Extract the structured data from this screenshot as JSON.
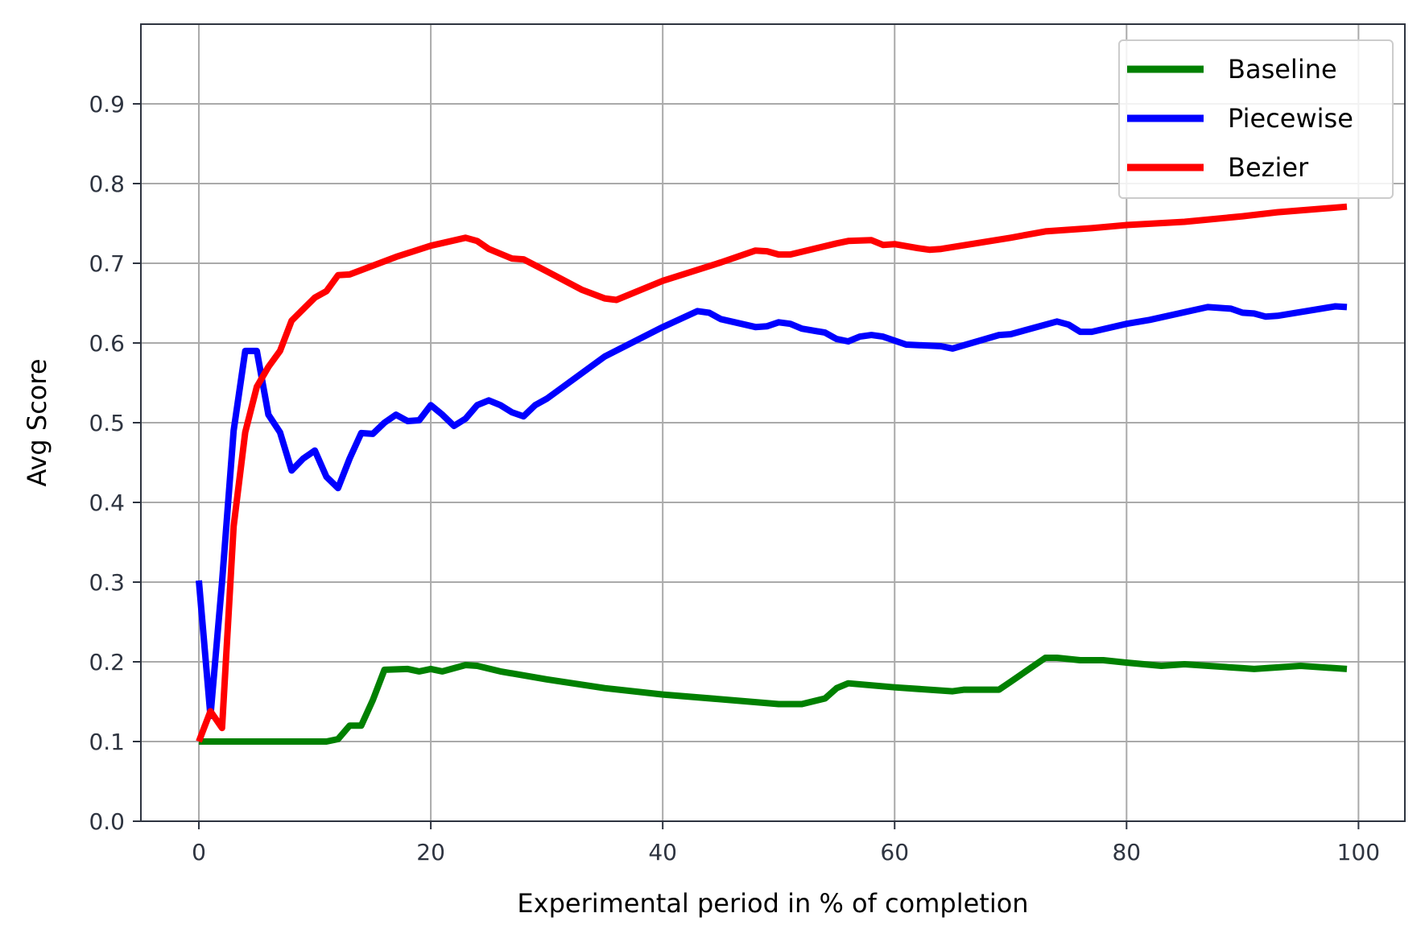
{
  "chart_data": {
    "type": "line",
    "xlabel": "Experimental period in % of completion",
    "ylabel": "Avg Score",
    "xlim": [
      -5,
      104
    ],
    "ylim": [
      0.0,
      1.0
    ],
    "xticks": [
      0,
      20,
      40,
      60,
      80,
      100
    ],
    "xtick_labels": [
      "0",
      "20",
      "40",
      "60",
      "80",
      "100"
    ],
    "yticks": [
      0.0,
      0.1,
      0.2,
      0.3,
      0.4,
      0.5,
      0.6,
      0.7,
      0.8,
      0.9
    ],
    "ytick_labels": [
      "0.0",
      "0.1",
      "0.2",
      "0.3",
      "0.4",
      "0.5",
      "0.6",
      "0.7",
      "0.8",
      "0.9"
    ],
    "grid": true,
    "legend_position": "top-right",
    "series": [
      {
        "name": "Baseline",
        "color": "#008000",
        "points": [
          [
            0,
            0.1
          ],
          [
            5,
            0.1
          ],
          [
            11,
            0.1
          ],
          [
            12,
            0.103
          ],
          [
            13,
            0.12
          ],
          [
            14,
            0.12
          ],
          [
            15,
            0.152
          ],
          [
            16,
            0.19
          ],
          [
            18,
            0.191
          ],
          [
            19,
            0.188
          ],
          [
            20,
            0.191
          ],
          [
            21,
            0.188
          ],
          [
            23,
            0.196
          ],
          [
            24,
            0.195
          ],
          [
            26,
            0.188
          ],
          [
            30,
            0.178
          ],
          [
            35,
            0.167
          ],
          [
            40,
            0.159
          ],
          [
            45,
            0.153
          ],
          [
            50,
            0.147
          ],
          [
            52,
            0.147
          ],
          [
            54,
            0.154
          ],
          [
            55,
            0.167
          ],
          [
            56,
            0.173
          ],
          [
            60,
            0.168
          ],
          [
            65,
            0.163
          ],
          [
            66,
            0.165
          ],
          [
            69,
            0.165
          ],
          [
            70,
            0.175
          ],
          [
            73,
            0.205
          ],
          [
            74,
            0.205
          ],
          [
            76,
            0.202
          ],
          [
            78,
            0.202
          ],
          [
            80,
            0.199
          ],
          [
            83,
            0.195
          ],
          [
            85,
            0.197
          ],
          [
            90,
            0.192
          ],
          [
            91,
            0.191
          ],
          [
            95,
            0.195
          ],
          [
            99,
            0.191
          ]
        ]
      },
      {
        "name": "Piecewise",
        "color": "#0000ff",
        "points": [
          [
            0,
            0.302
          ],
          [
            1,
            0.132
          ],
          [
            2,
            0.3
          ],
          [
            3,
            0.49
          ],
          [
            4,
            0.59
          ],
          [
            5,
            0.59
          ],
          [
            6,
            0.51
          ],
          [
            7,
            0.488
          ],
          [
            8,
            0.44
          ],
          [
            9,
            0.455
          ],
          [
            10,
            0.465
          ],
          [
            11,
            0.432
          ],
          [
            12,
            0.418
          ],
          [
            13,
            0.455
          ],
          [
            14,
            0.487
          ],
          [
            15,
            0.486
          ],
          [
            16,
            0.5
          ],
          [
            17,
            0.51
          ],
          [
            18,
            0.502
          ],
          [
            19,
            0.503
          ],
          [
            20,
            0.522
          ],
          [
            21,
            0.51
          ],
          [
            22,
            0.496
          ],
          [
            23,
            0.505
          ],
          [
            24,
            0.522
          ],
          [
            25,
            0.528
          ],
          [
            26,
            0.522
          ],
          [
            27,
            0.513
          ],
          [
            28,
            0.508
          ],
          [
            29,
            0.522
          ],
          [
            30,
            0.53
          ],
          [
            35,
            0.583
          ],
          [
            40,
            0.62
          ],
          [
            43,
            0.64
          ],
          [
            44,
            0.638
          ],
          [
            45,
            0.63
          ],
          [
            48,
            0.62
          ],
          [
            49,
            0.621
          ],
          [
            50,
            0.626
          ],
          [
            51,
            0.624
          ],
          [
            52,
            0.618
          ],
          [
            54,
            0.613
          ],
          [
            55,
            0.605
          ],
          [
            56,
            0.602
          ],
          [
            57,
            0.608
          ],
          [
            58,
            0.61
          ],
          [
            59,
            0.608
          ],
          [
            61,
            0.598
          ],
          [
            64,
            0.596
          ],
          [
            65,
            0.593
          ],
          [
            69,
            0.61
          ],
          [
            70,
            0.611
          ],
          [
            74,
            0.627
          ],
          [
            75,
            0.623
          ],
          [
            76,
            0.614
          ],
          [
            77,
            0.614
          ],
          [
            80,
            0.624
          ],
          [
            82,
            0.629
          ],
          [
            87,
            0.645
          ],
          [
            89,
            0.643
          ],
          [
            90,
            0.638
          ],
          [
            91,
            0.637
          ],
          [
            92,
            0.633
          ],
          [
            93,
            0.634
          ],
          [
            98,
            0.646
          ],
          [
            99,
            0.645
          ]
        ]
      },
      {
        "name": "Bezier",
        "color": "#ff0000",
        "points": [
          [
            0,
            0.1
          ],
          [
            1,
            0.138
          ],
          [
            2,
            0.117
          ],
          [
            3,
            0.37
          ],
          [
            4,
            0.488
          ],
          [
            5,
            0.545
          ],
          [
            6,
            0.57
          ],
          [
            7,
            0.59
          ],
          [
            8,
            0.628
          ],
          [
            10,
            0.657
          ],
          [
            11,
            0.665
          ],
          [
            12,
            0.685
          ],
          [
            13,
            0.686
          ],
          [
            15,
            0.697
          ],
          [
            17,
            0.708
          ],
          [
            20,
            0.722
          ],
          [
            23,
            0.732
          ],
          [
            24,
            0.728
          ],
          [
            25,
            0.718
          ],
          [
            27,
            0.706
          ],
          [
            28,
            0.705
          ],
          [
            30,
            0.69
          ],
          [
            33,
            0.667
          ],
          [
            35,
            0.656
          ],
          [
            36,
            0.654
          ],
          [
            40,
            0.678
          ],
          [
            45,
            0.701
          ],
          [
            48,
            0.716
          ],
          [
            49,
            0.715
          ],
          [
            50,
            0.711
          ],
          [
            51,
            0.711
          ],
          [
            55,
            0.725
          ],
          [
            56,
            0.728
          ],
          [
            58,
            0.729
          ],
          [
            59,
            0.723
          ],
          [
            60,
            0.724
          ],
          [
            62,
            0.719
          ],
          [
            63,
            0.717
          ],
          [
            64,
            0.718
          ],
          [
            70,
            0.732
          ],
          [
            73,
            0.74
          ],
          [
            77,
            0.744
          ],
          [
            80,
            0.748
          ],
          [
            85,
            0.752
          ],
          [
            90,
            0.759
          ],
          [
            93,
            0.764
          ],
          [
            99,
            0.771
          ]
        ]
      }
    ]
  }
}
